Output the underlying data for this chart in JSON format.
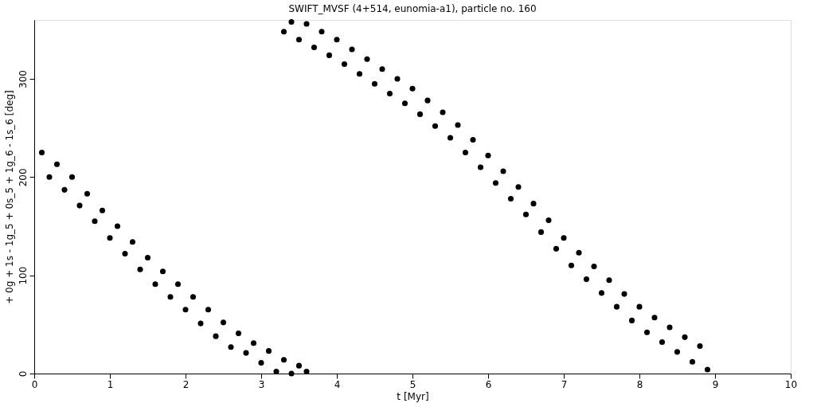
{
  "chart_data": {
    "type": "scatter",
    "title": "SWIFT_MVSF (4+514, eunomia-a1), particle no. 160",
    "xlabel": "t [Myr]",
    "ylabel": "+ 0g + 1s - 1g_5 + 0s_5 + 1g_6 - 1s_6 [deg]",
    "series": [
      {
        "color": "#000000",
        "x": [
          0.1,
          0.2,
          0.3,
          0.4,
          0.5,
          0.6,
          0.7,
          0.8,
          0.9,
          1.0,
          1.1,
          1.2,
          1.3,
          1.4,
          1.5,
          1.6,
          1.7,
          1.8,
          1.9,
          2.0,
          2.1,
          2.2,
          2.3,
          2.4,
          2.5,
          2.6,
          2.7,
          2.8,
          2.9,
          3.0,
          3.1,
          3.2,
          3.3,
          3.4,
          3.5,
          3.6
        ],
        "values": [
          225,
          200,
          213,
          187,
          200,
          171,
          183,
          155,
          166,
          138,
          150,
          122,
          134,
          106,
          118,
          91,
          104,
          78,
          91,
          65,
          78,
          51,
          65,
          38,
          52,
          27,
          41,
          21,
          31,
          11,
          23,
          2,
          14,
          0,
          8,
          2
        ]
      },
      {
        "color": "#000000",
        "x": [
          3.3,
          3.4,
          3.5,
          3.6,
          3.7,
          3.8,
          3.9,
          4.0,
          4.1,
          4.2,
          4.3,
          4.4,
          4.5,
          4.6,
          4.7,
          4.8,
          4.9,
          5.0,
          5.1,
          5.2,
          5.3,
          5.4,
          5.5,
          5.6,
          5.7,
          5.8,
          5.9,
          6.0,
          6.1,
          6.2,
          6.3,
          6.4,
          6.5,
          6.6,
          6.7,
          6.8,
          6.9,
          7.0,
          7.1,
          7.2,
          7.3,
          7.4,
          7.5,
          7.6,
          7.7,
          7.8,
          7.9,
          8.0,
          8.1,
          8.2,
          8.3,
          8.4,
          8.5,
          8.6,
          8.7,
          8.8,
          8.9
        ],
        "values": [
          348,
          358,
          340,
          356,
          332,
          348,
          324,
          340,
          315,
          330,
          305,
          320,
          295,
          310,
          285,
          300,
          275,
          290,
          264,
          278,
          252,
          266,
          240,
          253,
          225,
          238,
          210,
          222,
          194,
          206,
          178,
          190,
          162,
          173,
          144,
          156,
          127,
          138,
          110,
          123,
          96,
          109,
          82,
          95,
          68,
          81,
          54,
          68,
          42,
          57,
          32,
          47,
          22,
          37,
          12,
          28,
          4
        ]
      }
    ],
    "marker": "circle",
    "grid": false,
    "legend": false,
    "xlim": [
      0,
      10
    ],
    "xticks": [
      0,
      1,
      2,
      3,
      4,
      5,
      6,
      7,
      8,
      9,
      10
    ],
    "ylim": [
      0,
      360
    ],
    "yticks": [
      0,
      100,
      200,
      300
    ]
  }
}
